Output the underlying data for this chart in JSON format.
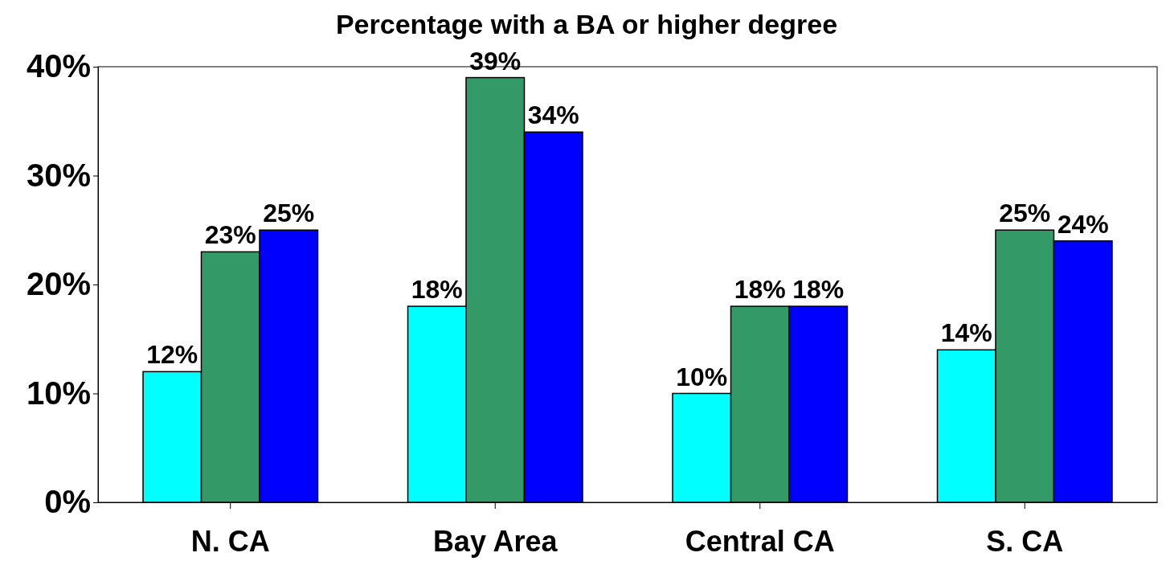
{
  "chart_data": {
    "type": "bar",
    "title": "Percentage with a BA or higher degree",
    "categories": [
      "N. CA",
      "Bay Area",
      "Central CA",
      "S. CA"
    ],
    "series": [
      {
        "color": "#00ffff",
        "values": [
          12,
          18,
          10,
          14
        ],
        "value_labels": [
          "12%",
          "18%",
          "10%",
          "14%"
        ]
      },
      {
        "color": "#339966",
        "values": [
          23,
          39,
          18,
          25
        ],
        "value_labels": [
          "23%",
          "39%",
          "18%",
          "25%"
        ]
      },
      {
        "color": "#0000ff",
        "values": [
          25,
          34,
          18,
          24
        ],
        "value_labels": [
          "25%",
          "34%",
          "18%",
          "24%"
        ]
      }
    ],
    "ylim": [
      0,
      40
    ],
    "yticks": [
      {
        "value": 0,
        "label": "0%"
      },
      {
        "value": 10,
        "label": "10%"
      },
      {
        "value": 20,
        "label": "20%"
      },
      {
        "value": 30,
        "label": "30%"
      },
      {
        "value": 40,
        "label": "40%"
      }
    ],
    "grid": false
  }
}
